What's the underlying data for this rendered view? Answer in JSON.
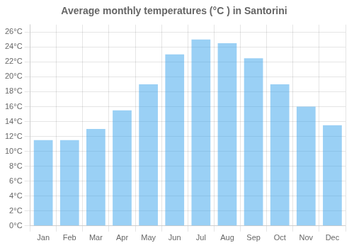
{
  "chart_data": {
    "type": "bar",
    "title": "Average monthly temperatures (°C ) in Santorini",
    "categories": [
      "Jan",
      "Feb",
      "Mar",
      "Apr",
      "May",
      "Jun",
      "Jul",
      "Aug",
      "Sep",
      "Oct",
      "Nov",
      "Dec"
    ],
    "values": [
      11.5,
      11.5,
      13.0,
      15.5,
      19.0,
      23.0,
      25.0,
      24.5,
      22.5,
      19.0,
      16.0,
      13.5
    ],
    "ylim": [
      0,
      27
    ],
    "yticks": [
      {
        "value": 0,
        "label": "0°C"
      },
      {
        "value": 2,
        "label": "2°C"
      },
      {
        "value": 4,
        "label": "4°C"
      },
      {
        "value": 6,
        "label": "6°C"
      },
      {
        "value": 8,
        "label": "8°C"
      },
      {
        "value": 10,
        "label": "10°C"
      },
      {
        "value": 12,
        "label": "12°C"
      },
      {
        "value": 14,
        "label": "14°C"
      },
      {
        "value": 16,
        "label": "16°C"
      },
      {
        "value": 18,
        "label": "18°C"
      },
      {
        "value": 20,
        "label": "20°C"
      },
      {
        "value": 22,
        "label": "22°C"
      },
      {
        "value": 24,
        "label": "24°C"
      },
      {
        "value": 26,
        "label": "26°C"
      }
    ],
    "grid": true
  }
}
